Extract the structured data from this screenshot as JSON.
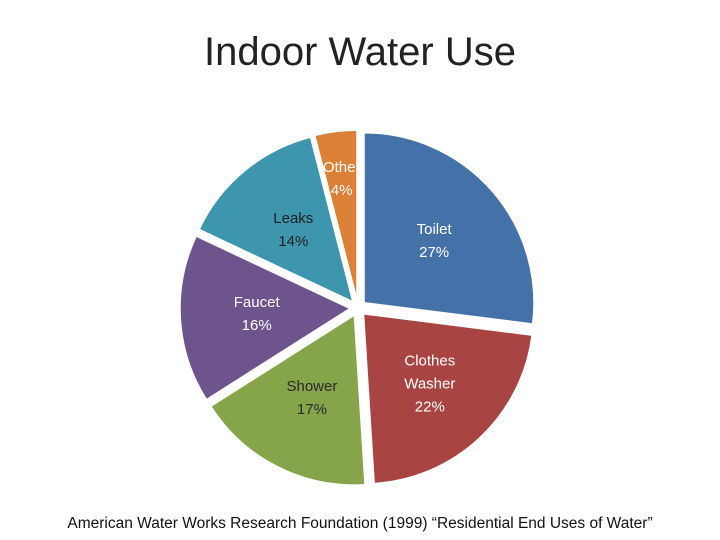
{
  "chart_data": {
    "type": "pie",
    "title": "Indoor Water Use",
    "slices": [
      {
        "label": "Toilet",
        "value": 27,
        "value_label": "27%",
        "color": "#4472A8",
        "label_color": "#ffffff"
      },
      {
        "label": "Clothes\nWasher",
        "value": 22,
        "value_label": "22%",
        "color": "#A84542",
        "label_color": "#ffffff"
      },
      {
        "label": "Shower",
        "value": 17,
        "value_label": "17%",
        "color": "#86A44A",
        "label_color": "#2a2a2a"
      },
      {
        "label": "Faucet",
        "value": 16,
        "value_label": "16%",
        "color": "#6E548D",
        "label_color": "#ffffff"
      },
      {
        "label": "Leaks",
        "value": 14,
        "value_label": "14%",
        "color": "#3D96AE",
        "label_color": "#1f1f1f"
      },
      {
        "label": "Other",
        "value": 4,
        "value_label": "4%",
        "color": "#DA8137",
        "label_color": "#ffffff"
      }
    ],
    "start_angle_deg": 0,
    "direction": "clockwise",
    "legend": "none"
  },
  "source": "American Water Works Research Foundation (1999) “Residential End Uses of Water”"
}
